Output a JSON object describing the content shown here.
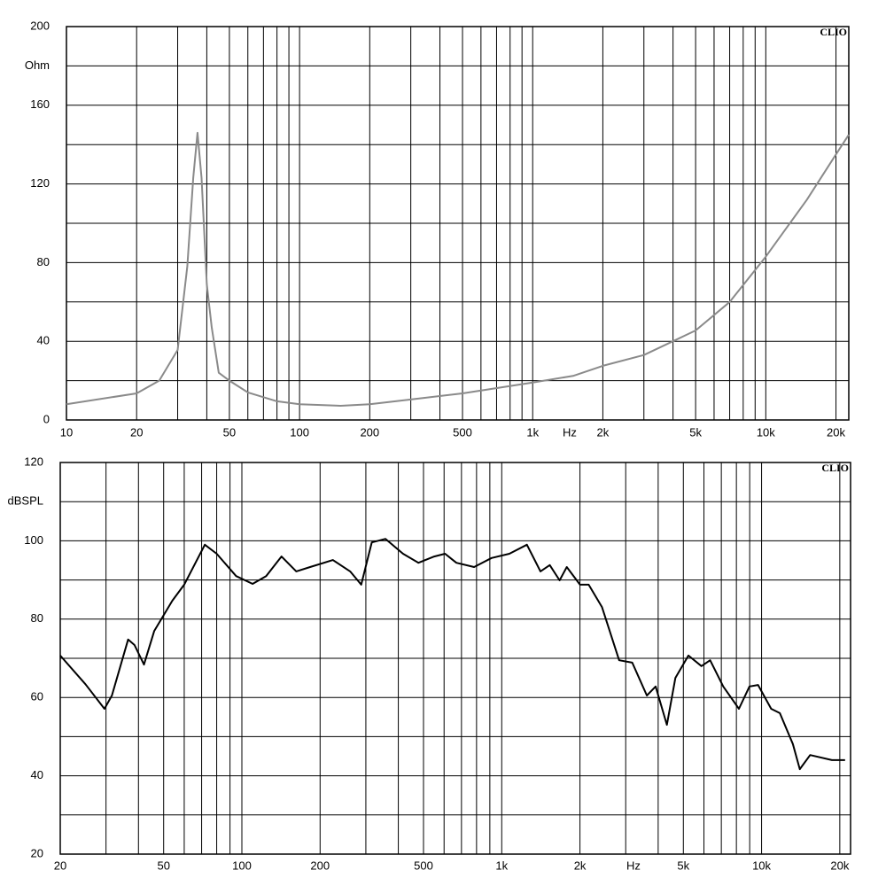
{
  "chart_data": [
    {
      "type": "line",
      "y_label": "Ohm",
      "annotations": [
        "Hz",
        "CLIO"
      ],
      "xscale": "log",
      "xlim": [
        10,
        22700
      ],
      "ylim": [
        0,
        200
      ],
      "xticks": [
        10,
        20,
        50,
        100,
        200,
        500,
        {
          "value": 1000,
          "label": "1k"
        },
        {
          "value": 2000,
          "label": "2k"
        },
        {
          "value": 5000,
          "label": "5k"
        },
        {
          "value": 10000,
          "label": "10k"
        },
        {
          "value": 20000,
          "label": "20k"
        }
      ],
      "xgrid_minor": [
        30,
        40,
        60,
        70,
        80,
        90,
        300,
        400,
        600,
        700,
        800,
        900,
        3000,
        4000,
        6000,
        7000,
        8000,
        9000
      ],
      "yticks": [
        0,
        40,
        80,
        120,
        160,
        200
      ],
      "ygrid_minor": [
        20,
        60,
        100,
        140,
        180
      ],
      "grid": true,
      "series": [
        {
          "color": "#8a8a8a",
          "x": [
            10,
            20,
            25,
            30,
            33,
            35,
            36.5,
            38,
            40,
            42,
            45,
            50,
            60,
            80,
            100,
            150,
            200,
            300,
            500,
            1000,
            1500,
            2000,
            3000,
            5000,
            7000,
            10000,
            15000,
            20000,
            22700
          ],
          "values": [
            8,
            13.5,
            20,
            35.6,
            78,
            123,
            146,
            123,
            69,
            47,
            24,
            20,
            14,
            9.5,
            8,
            7.2,
            8,
            10.4,
            13.5,
            19,
            22.5,
            27.5,
            33,
            45.5,
            60,
            83,
            112,
            135,
            145
          ]
        }
      ]
    },
    {
      "type": "line",
      "y_label": "dBSPL",
      "annotations": [
        "Hz",
        "CLIO"
      ],
      "xscale": "log",
      "xlim": [
        20,
        22000
      ],
      "ylim": [
        20,
        120
      ],
      "xticks": [
        20,
        50,
        100,
        200,
        500,
        {
          "value": 1000,
          "label": "1k"
        },
        {
          "value": 2000,
          "label": "2k"
        },
        {
          "value": 5000,
          "label": "5k"
        },
        {
          "value": 10000,
          "label": "10k"
        },
        {
          "value": 20000,
          "label": "20k"
        }
      ],
      "xgrid_minor": [
        30,
        40,
        60,
        70,
        80,
        90,
        300,
        400,
        600,
        700,
        800,
        900,
        3000,
        4000,
        6000,
        7000,
        8000,
        9000
      ],
      "yticks": [
        20,
        40,
        60,
        80,
        100,
        120
      ],
      "ygrid_minor": [
        30,
        50,
        70,
        90,
        110
      ],
      "grid": true,
      "series": [
        {
          "color": "#000000",
          "x": [
            20,
            25,
            29.6,
            31.6,
            36.5,
            38.6,
            42,
            46,
            54,
            60,
            72,
            80,
            95,
            110,
            124,
            142,
            162,
            183,
            224,
            261,
            288,
            316,
            357,
            417,
            478,
            550,
            605,
            669,
            783,
            914,
            1070,
            1250,
            1410,
            1530,
            1670,
            1780,
            2000,
            2160,
            2430,
            2830,
            3180,
            3620,
            3910,
            4320,
            4660,
            5230,
            5870,
            6340,
            7120,
            8180,
            8980,
            9690,
            10890,
            11760,
            13200,
            14030,
            15380,
            18650,
            20960
          ],
          "values": [
            70.7,
            63.4,
            57.1,
            60.5,
            74.8,
            73.4,
            68.4,
            77,
            84.7,
            88.8,
            99,
            96.7,
            91,
            89,
            91,
            96,
            92.2,
            93.3,
            95.1,
            92.2,
            88.8,
            99.6,
            100.5,
            96.7,
            94.4,
            96,
            96.7,
            94.4,
            93.3,
            95.6,
            96.7,
            99,
            92.2,
            93.8,
            89.9,
            93.3,
            88.8,
            88.8,
            83.1,
            69.5,
            68.9,
            60.5,
            62.8,
            53,
            65,
            70.7,
            68,
            69.5,
            62.8,
            57.1,
            62.8,
            63.2,
            57.1,
            56,
            48.1,
            41.7,
            45.3,
            44,
            44
          ]
        }
      ]
    }
  ]
}
